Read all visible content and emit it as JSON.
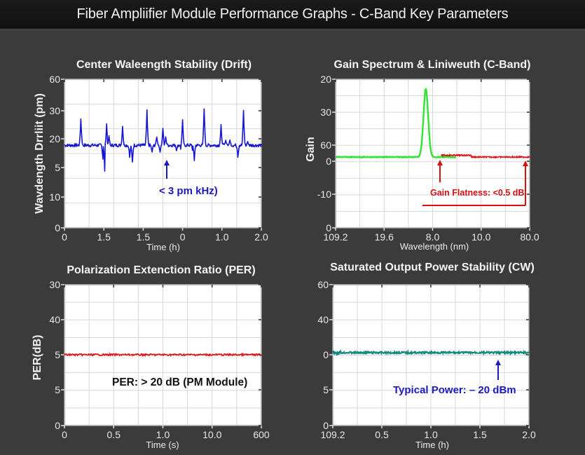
{
  "header": {
    "title": "Fiber Ampliifier Module Performance Graphs - C-Band Key Parameters"
  },
  "colors": {
    "background": "#3b3b3b",
    "titlebar": "#141414",
    "plot_bg": "#ffffff",
    "grid": "#d9d9d9",
    "drift_line": "#1414d4",
    "gain_green": "#33e333",
    "gain_red": "#e01010",
    "per_line": "#e01818",
    "power_line": "#138a7c",
    "annot_blue": "#1a1ac0",
    "annot_red": "#d81010",
    "annot_black": "#111111"
  },
  "chart_data": [
    {
      "id": "drift",
      "type": "line",
      "title": "Center Waleength Stability (Drift)",
      "xlabel": "Time (h)",
      "ylabel": "Wavdength Drrliit (pm)",
      "xticks": [
        "0",
        "1.5",
        "1.5",
        "0",
        "1.0",
        "2.0"
      ],
      "yticks": [
        "0",
        "10",
        "5",
        "20",
        "30",
        "60"
      ],
      "ylim": [
        0,
        60
      ],
      "grid": true,
      "series": [
        {
          "name": "Wavelength drift",
          "color": "#1414d4",
          "baseline": 18,
          "spikes": [
            {
              "x": 0.083,
              "y": 27.2
            },
            {
              "x": 0.195,
              "y": 13.5
            },
            {
              "x": 0.205,
              "y": 10.2
            },
            {
              "x": 0.215,
              "y": 25.1
            },
            {
              "x": 0.225,
              "y": 21.0
            },
            {
              "x": 0.295,
              "y": 24.2
            },
            {
              "x": 0.33,
              "y": 14.5
            },
            {
              "x": 0.345,
              "y": 12.8
            },
            {
              "x": 0.42,
              "y": 30.6
            },
            {
              "x": 0.445,
              "y": 16.0
            },
            {
              "x": 0.47,
              "y": 20.8
            },
            {
              "x": 0.485,
              "y": 16.0
            },
            {
              "x": 0.5,
              "y": 23.5
            },
            {
              "x": 0.515,
              "y": 20.5
            },
            {
              "x": 0.57,
              "y": 16.2
            },
            {
              "x": 0.595,
              "y": 14.0
            },
            {
              "x": 0.6,
              "y": 27.0
            },
            {
              "x": 0.655,
              "y": 12.8
            },
            {
              "x": 0.66,
              "y": 13.5
            },
            {
              "x": 0.71,
              "y": 32.0
            },
            {
              "x": 0.795,
              "y": 25.0
            },
            {
              "x": 0.82,
              "y": 19.5
            },
            {
              "x": 0.84,
              "y": 19.5
            },
            {
              "x": 0.88,
              "y": 14.0
            },
            {
              "x": 0.91,
              "y": 30.5
            },
            {
              "x": 0.93,
              "y": 19.0
            }
          ]
        }
      ],
      "annotations": [
        {
          "text": "< 3 pm kHz)",
          "color": "#1a1ac0",
          "arrow_x": 0.525
        }
      ]
    },
    {
      "id": "gain",
      "type": "line",
      "title": "Gain Spectrum & Liniweuth (C-Band)",
      "xlabel": "Wavelength (nm)",
      "ylabel": "Gain",
      "xticks": [
        "109.2",
        "19.6",
        "8.0",
        "10.0",
        "80.0"
      ],
      "yticks": [
        "0",
        "-10",
        "0",
        "60",
        "30",
        "20"
      ],
      "grid": true,
      "series": [
        {
          "name": "Gain (green)",
          "color": "#33e333",
          "baseline": 0.47,
          "peak_x": 0.465,
          "peak_height": 0.97
        },
        {
          "name": "Gain flatness (red)",
          "color": "#e01010",
          "x_start": 0.545,
          "x_end": 1.0
        }
      ],
      "annotations": [
        {
          "text": "Gain Flatness: <0.5 dB",
          "color": "#d81010"
        }
      ]
    },
    {
      "id": "per",
      "type": "line",
      "title": "Polarization Extenction Ratio (PER)",
      "xlabel": "Time (s)",
      "ylabel": "PER(dB)",
      "xticks": [
        "0",
        "0.5",
        "1.0",
        "10.0",
        "600"
      ],
      "yticks": [
        "0",
        "5",
        "5",
        "40",
        "30"
      ],
      "grid": true,
      "series": [
        {
          "name": "PER",
          "color": "#e01818",
          "level_label": "5",
          "approx_value": "~5 (flat)"
        }
      ],
      "annotations": [
        {
          "text": "PER: > 20 dB (PM Module)",
          "color": "#111111"
        }
      ]
    },
    {
      "id": "power",
      "type": "line",
      "title": "Saturated Output Power Stability (CW)",
      "xlabel": "Time (h)",
      "ylabel": "",
      "xticks": [
        "109.2",
        "0.5",
        "1.0",
        "1.5",
        "2.0"
      ],
      "yticks": [
        "0",
        "5",
        "0",
        "40",
        "60"
      ],
      "grid": true,
      "series": [
        {
          "name": "Output power",
          "color": "#138a7c",
          "level_label": "0",
          "approx_value": "~0 (flat)"
        }
      ],
      "annotations": [
        {
          "text": "Typical Power: – 20 dBm",
          "color": "#1a1ac0",
          "arrow_x": 0.84
        }
      ]
    }
  ]
}
